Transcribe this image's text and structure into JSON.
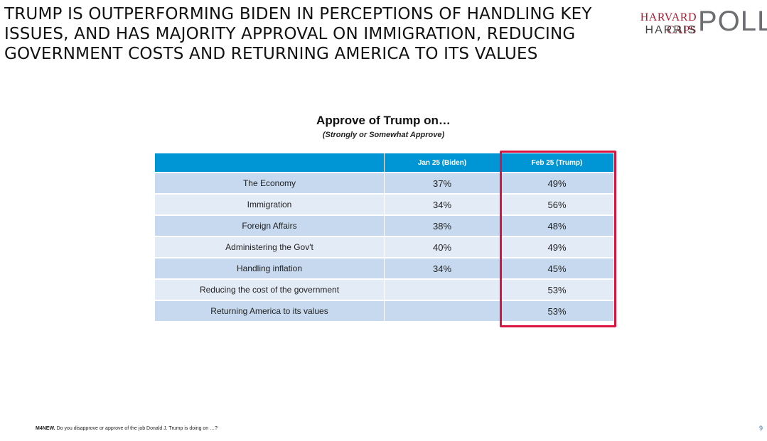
{
  "headline": "TRUMP IS OUTPERFORMING BIDEN IN PERCEPTIONS OF HANDLING KEY ISSUES, AND HAS MAJORITY APPROVAL ON IMMIGRATION, REDUCING GOVERNMENT COSTS AND RETURNING AMERICA TO ITS VALUES",
  "logo": {
    "line1": "HARVARD CAPS",
    "line2": "HARRIS",
    "word": "POLL"
  },
  "colors": {
    "header": "#0096d6",
    "row_dark": "#c6d9ee",
    "row_light": "#e3ebf6",
    "highlight": "#d9143f",
    "brand": "#a51c30"
  },
  "chart_data": {
    "type": "table",
    "title": "Approve of Trump on…",
    "subtitle": "(Strongly or Somewhat Approve)",
    "columns": [
      "",
      "Jan 25 (Biden)",
      "Feb 25 (Trump)"
    ],
    "highlighted_column": "Feb 25 (Trump)",
    "rows": [
      {
        "label": "The Economy",
        "values": [
          "37%",
          "49%"
        ]
      },
      {
        "label": "Immigration",
        "values": [
          "34%",
          "56%"
        ]
      },
      {
        "label": "Foreign Affairs",
        "values": [
          "38%",
          "48%"
        ]
      },
      {
        "label": "Administering the Gov't",
        "values": [
          "40%",
          "49%"
        ]
      },
      {
        "label": "Handling inflation",
        "values": [
          "34%",
          "45%"
        ]
      },
      {
        "label": "Reducing the cost of the government",
        "values": [
          "",
          "53%"
        ]
      },
      {
        "label": "Returning America to its values",
        "values": [
          "",
          "53%"
        ]
      }
    ]
  },
  "footnote": {
    "code": "M4NEW.",
    "text": "Do you disapprove or approve of the job Donald J. Trump is doing on …?"
  },
  "page_number": "9"
}
